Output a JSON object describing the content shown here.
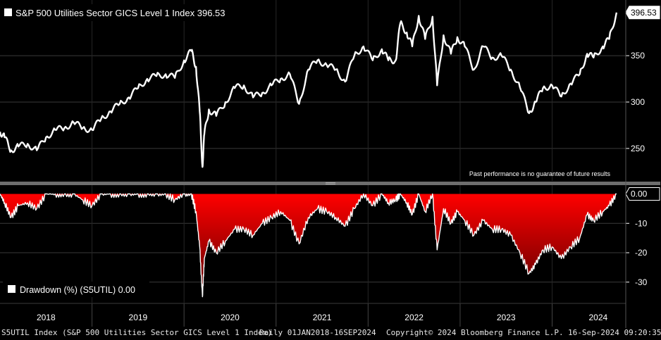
{
  "chart_data": [
    {
      "type": "line",
      "title": "",
      "legend": {
        "label": "S&P 500 Utilities Sector GICS Level 1 Index",
        "value": "396.53",
        "placement": "top-left"
      },
      "last_value_tag": "396.53",
      "disclaimer": "Past performance is no guarantee of future results",
      "ylim": [
        215,
        410
      ],
      "yticks": [
        250,
        300,
        350
      ],
      "grid": true,
      "series": [
        {
          "name": "S&P 500 Utilities Sector GICS Level 1 Index",
          "x": [
            2018.0,
            2018.05,
            2018.12,
            2018.2,
            2018.3,
            2018.4,
            2018.5,
            2018.6,
            2018.7,
            2018.8,
            2018.9,
            2019.0,
            2019.1,
            2019.2,
            2019.3,
            2019.4,
            2019.5,
            2019.6,
            2019.7,
            2019.8,
            2019.9,
            2020.0,
            2020.08,
            2020.13,
            2020.17,
            2020.2,
            2020.22,
            2020.27,
            2020.35,
            2020.45,
            2020.55,
            2020.65,
            2020.75,
            2020.85,
            2020.95,
            2021.05,
            2021.15,
            2021.25,
            2021.35,
            2021.45,
            2021.55,
            2021.65,
            2021.75,
            2021.85,
            2021.95,
            2022.05,
            2022.15,
            2022.22,
            2022.3,
            2022.35,
            2022.42,
            2022.48,
            2022.55,
            2022.62,
            2022.7,
            2022.75,
            2022.82,
            2022.9,
            2022.97,
            2023.05,
            2023.15,
            2023.25,
            2023.35,
            2023.45,
            2023.55,
            2023.65,
            2023.75,
            2023.82,
            2023.9,
            2024.0,
            2024.1,
            2024.2,
            2024.3,
            2024.38,
            2024.45,
            2024.55,
            2024.62,
            2024.7
          ],
          "values": [
            268,
            262,
            248,
            252,
            255,
            248,
            262,
            270,
            272,
            278,
            272,
            270,
            282,
            290,
            298,
            305,
            315,
            325,
            328,
            330,
            326,
            345,
            355,
            338,
            290,
            230,
            265,
            292,
            285,
            300,
            315,
            318,
            305,
            310,
            318,
            325,
            330,
            298,
            335,
            345,
            340,
            335,
            322,
            350,
            360,
            345,
            357,
            345,
            345,
            385,
            375,
            360,
            393,
            368,
            392,
            318,
            372,
            352,
            370,
            360,
            335,
            360,
            348,
            350,
            335,
            316,
            288,
            300,
            315,
            318,
            306,
            320,
            330,
            352,
            348,
            360,
            368,
            396.53
          ]
        }
      ]
    },
    {
      "type": "area",
      "legend": {
        "label": "Drawdown (%) (S5UTIL)",
        "value": "0.00",
        "placement": "bottom-left"
      },
      "last_value_tag": "0.00",
      "ylim": [
        -37,
        3
      ],
      "yticks": [
        0.0,
        -10,
        -20,
        -30
      ],
      "ytick_labels": [
        "0.00",
        "-10",
        "-20",
        "-30"
      ],
      "grid": true,
      "series": [
        {
          "name": "Drawdown (%) (S5UTIL)",
          "x": [
            2018.0,
            2018.05,
            2018.12,
            2018.2,
            2018.3,
            2018.4,
            2018.5,
            2018.6,
            2018.7,
            2018.8,
            2018.9,
            2019.0,
            2019.1,
            2019.2,
            2019.3,
            2019.4,
            2019.5,
            2019.6,
            2019.7,
            2019.8,
            2019.9,
            2020.0,
            2020.08,
            2020.13,
            2020.17,
            2020.2,
            2020.22,
            2020.27,
            2020.35,
            2020.45,
            2020.55,
            2020.65,
            2020.75,
            2020.85,
            2020.95,
            2021.05,
            2021.15,
            2021.25,
            2021.35,
            2021.45,
            2021.55,
            2021.65,
            2021.75,
            2021.85,
            2021.95,
            2022.05,
            2022.15,
            2022.22,
            2022.3,
            2022.35,
            2022.42,
            2022.48,
            2022.55,
            2022.62,
            2022.7,
            2022.75,
            2022.82,
            2022.9,
            2022.97,
            2023.05,
            2023.15,
            2023.25,
            2023.35,
            2023.45,
            2023.55,
            2023.65,
            2023.75,
            2023.82,
            2023.9,
            2024.0,
            2024.1,
            2024.2,
            2024.3,
            2024.38,
            2024.45,
            2024.55,
            2024.62,
            2024.7
          ],
          "values": [
            0,
            -3,
            -8,
            -4,
            -3,
            -5,
            0,
            0,
            0,
            0,
            -2,
            -4,
            0,
            0,
            0,
            0,
            0,
            0,
            0,
            0,
            -2,
            0,
            0,
            -6,
            -18,
            -35,
            -22,
            -16,
            -20,
            -16,
            -12,
            -12,
            -14,
            -10,
            -8,
            -6,
            -9,
            -17,
            -8,
            -5,
            -6,
            -8,
            -11,
            -5,
            0,
            -4,
            0,
            -3,
            -2,
            0,
            -3,
            -7,
            0,
            -6,
            0,
            -19,
            -5,
            -10,
            -6,
            -9,
            -14,
            -9,
            -12,
            -12,
            -14,
            -20,
            -27,
            -24,
            -19,
            -18,
            -22,
            -18,
            -15,
            -7,
            -9,
            -6,
            -4,
            0
          ]
        }
      ]
    }
  ],
  "x_axis": {
    "min": 2018.0,
    "max": 2024.8,
    "labels": [
      {
        "text": "2018",
        "x": 2018.5
      },
      {
        "text": "2019",
        "x": 2019.5
      },
      {
        "text": "2020",
        "x": 2020.5
      },
      {
        "text": "2021",
        "x": 2021.5
      },
      {
        "text": "2022",
        "x": 2022.5
      },
      {
        "text": "2023",
        "x": 2023.5
      },
      {
        "text": "2024",
        "x": 2024.5
      }
    ],
    "dividers": [
      2019,
      2020,
      2021,
      2022,
      2023,
      2024
    ]
  },
  "footer": {
    "ticker": "S5UTIL Index (S&P 500 Utilities Sector GICS Level 1 Index)",
    "range": "Daily 01JAN2018-16SEP2024",
    "copyright": "Copyright© 2024 Bloomberg Finance L.P.",
    "timestamp": "16-Sep-2024 09:20:35"
  },
  "colors": {
    "background": "#000000",
    "line": "#ffffff",
    "area_top": "#ff0000",
    "area_bottom": "#5a0000",
    "grid": "#3a3a3a",
    "separator": "#6e6e6e"
  }
}
